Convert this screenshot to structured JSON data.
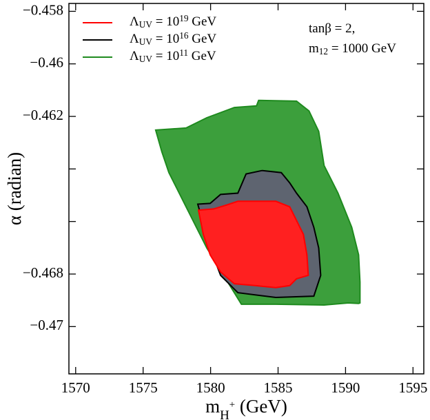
{
  "chart_data": {
    "type": "region",
    "xlabel": [
      "m",
      "H",
      "+",
      " (GeV)"
    ],
    "ylabel": "α (radian)",
    "annotations": [
      [
        "tanβ = 2,"
      ],
      [
        "m",
        "12",
        " = 1000 GeV"
      ]
    ],
    "xlim": [
      1569.5,
      1595.8
    ],
    "ylim": [
      -0.4718,
      -0.4577
    ],
    "xticks": [
      1570,
      1575,
      1580,
      1585,
      1590,
      1595
    ],
    "yticks": [
      {
        "value": -0.458,
        "label": "−0.458"
      },
      {
        "value": -0.46,
        "label": "−0.46"
      },
      {
        "value": -0.462,
        "label": "−0.462"
      },
      {
        "value": -0.464,
        "label": null
      },
      {
        "value": -0.466,
        "label": null
      },
      {
        "value": -0.468,
        "label": "−0.468"
      },
      {
        "value": -0.47,
        "label": "−0.47"
      }
    ],
    "series": [
      {
        "name": [
          "Λ",
          "UV",
          " = 10",
          "19",
          " GeV"
        ],
        "color": "#ff0000",
        "fill": "#ff2020",
        "x": [
          1579.1,
          1580.23,
          1581.25,
          1582.02,
          1584.83,
          1585.86,
          1586.37,
          1586.88,
          1587.14,
          1587.24,
          1586.37,
          1585.86,
          1584.83,
          1583.3,
          1581.76,
          1580.74,
          1579.97,
          1579.46
        ],
        "values": [
          -0.46557,
          -0.46552,
          -0.46536,
          -0.46523,
          -0.46523,
          -0.46544,
          -0.46596,
          -0.46649,
          -0.46727,
          -0.46805,
          -0.46818,
          -0.46844,
          -0.46852,
          -0.46844,
          -0.46837,
          -0.46792,
          -0.46727,
          -0.46649
        ]
      },
      {
        "name": [
          "Λ",
          "UV",
          " = 10",
          "16",
          " GeV"
        ],
        "color": "#000000",
        "fill": "#5e6470",
        "x": [
          1579.05,
          1579.97,
          1580.74,
          1582.02,
          1582.63,
          1583.81,
          1585.24,
          1585.86,
          1586.37,
          1587.14,
          1587.65,
          1588.01,
          1588.16,
          1587.65,
          1584.83,
          1582.02,
          1580.74,
          1579.97
        ],
        "values": [
          -0.46534,
          -0.46531,
          -0.46497,
          -0.46492,
          -0.46419,
          -0.46406,
          -0.46414,
          -0.46453,
          -0.46492,
          -0.46544,
          -0.46622,
          -0.46701,
          -0.46805,
          -0.46884,
          -0.46889,
          -0.46871,
          -0.46805,
          -0.46701
        ]
      },
      {
        "name": [
          "Λ",
          "UV",
          " = 10",
          "11",
          " GeV"
        ],
        "color": "#1e8a1e",
        "fill": "#3c9f3c",
        "x": [
          1575.93,
          1578.18,
          1579.72,
          1581.76,
          1583.4,
          1583.56,
          1586.37,
          1587.29,
          1588.01,
          1588.41,
          1589.44,
          1590.46,
          1590.97,
          1591.07,
          1591.07,
          1590.97,
          1590.2,
          1588.41,
          1584.83,
          1582.28,
          1579.72,
          1578.18,
          1576.91,
          1576.39
        ],
        "values": [
          -0.46252,
          -0.46244,
          -0.46205,
          -0.46166,
          -0.4616,
          -0.46139,
          -0.46142,
          -0.46179,
          -0.46257,
          -0.46387,
          -0.46492,
          -0.46622,
          -0.46727,
          -0.46831,
          -0.4691,
          -0.46912,
          -0.4691,
          -0.46918,
          -0.46915,
          -0.46915,
          -0.46701,
          -0.46544,
          -0.46414,
          -0.46335
        ]
      }
    ]
  }
}
